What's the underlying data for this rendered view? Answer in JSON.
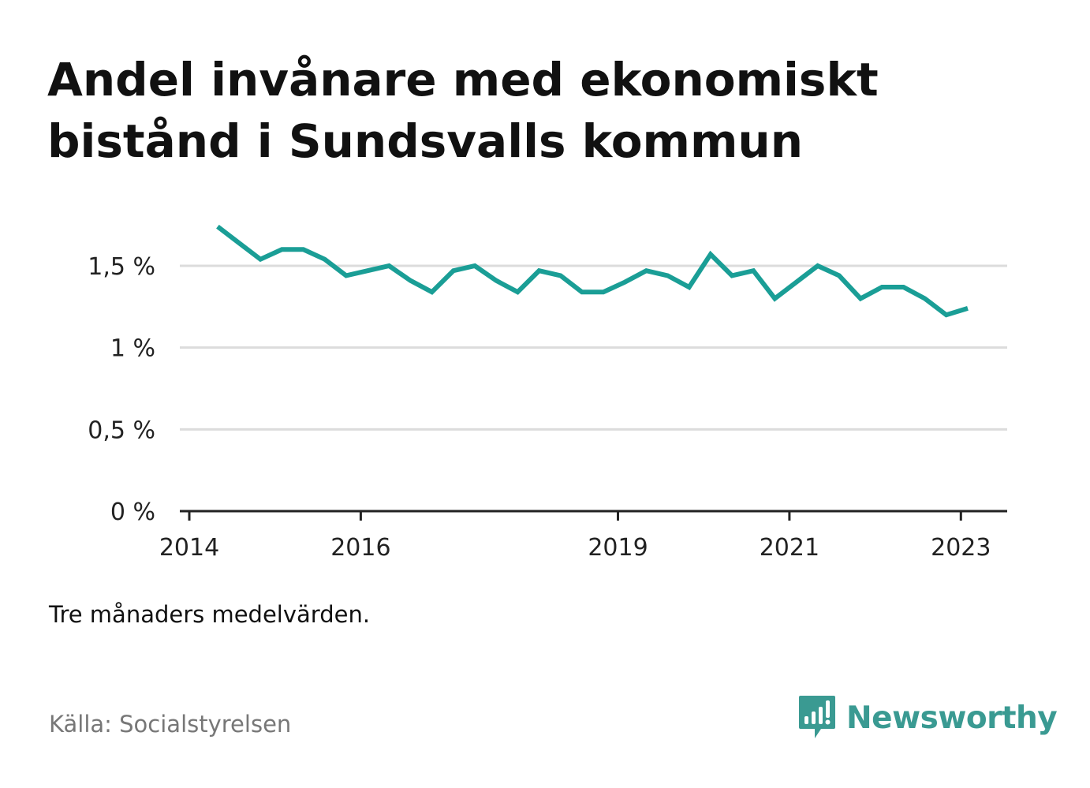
{
  "title": "Andel invånare med ekonomiskt bistånd i Sundsvalls kommun",
  "note": "Tre månaders medelvärden.",
  "source": "Källa: Socialstyrelsen",
  "brand": "Newsworthy",
  "colors": {
    "line": "#1a9e96",
    "brand": "#3a9a92",
    "grid": "#dcdcdc",
    "axis": "#222222"
  },
  "chart_data": {
    "type": "line",
    "title": "Andel invånare med ekonomiskt bistånd i Sundsvalls kommun",
    "xlabel": "",
    "ylabel": "",
    "x_ticks": [
      {
        "label": "2014",
        "year": 2014
      },
      {
        "label": "2016",
        "year": 2016
      },
      {
        "label": "2019",
        "year": 2019
      },
      {
        "label": "2021",
        "year": 2021
      },
      {
        "label": "2023",
        "year": 2023
      }
    ],
    "y_ticks": [
      {
        "label": "0 %",
        "value": 0
      },
      {
        "label": "0,5 %",
        "value": 0.5
      },
      {
        "label": "1 %",
        "value": 1
      },
      {
        "label": "1,5 %",
        "value": 1.5
      }
    ],
    "xlim": [
      2014,
      2023.5
    ],
    "ylim": [
      0,
      1.5
    ],
    "grid": true,
    "series": [
      {
        "values": [
          {
            "x": 2014.33,
            "y": 1.74
          },
          {
            "x": 2014.58,
            "y": 1.64
          },
          {
            "x": 2014.83,
            "y": 1.54
          },
          {
            "x": 2015.08,
            "y": 1.6
          },
          {
            "x": 2015.33,
            "y": 1.6
          },
          {
            "x": 2015.58,
            "y": 1.54
          },
          {
            "x": 2015.83,
            "y": 1.44
          },
          {
            "x": 2016.08,
            "y": 1.47
          },
          {
            "x": 2016.33,
            "y": 1.5
          },
          {
            "x": 2016.58,
            "y": 1.41
          },
          {
            "x": 2016.83,
            "y": 1.34
          },
          {
            "x": 2017.08,
            "y": 1.47
          },
          {
            "x": 2017.33,
            "y": 1.5
          },
          {
            "x": 2017.58,
            "y": 1.41
          },
          {
            "x": 2017.83,
            "y": 1.34
          },
          {
            "x": 2018.08,
            "y": 1.47
          },
          {
            "x": 2018.33,
            "y": 1.44
          },
          {
            "x": 2018.58,
            "y": 1.34
          },
          {
            "x": 2018.83,
            "y": 1.34
          },
          {
            "x": 2019.08,
            "y": 1.4
          },
          {
            "x": 2019.33,
            "y": 1.47
          },
          {
            "x": 2019.58,
            "y": 1.44
          },
          {
            "x": 2019.83,
            "y": 1.37
          },
          {
            "x": 2020.08,
            "y": 1.57
          },
          {
            "x": 2020.33,
            "y": 1.44
          },
          {
            "x": 2020.58,
            "y": 1.47
          },
          {
            "x": 2020.83,
            "y": 1.3
          },
          {
            "x": 2021.08,
            "y": 1.4
          },
          {
            "x": 2021.33,
            "y": 1.5
          },
          {
            "x": 2021.58,
            "y": 1.44
          },
          {
            "x": 2021.83,
            "y": 1.3
          },
          {
            "x": 2022.08,
            "y": 1.37
          },
          {
            "x": 2022.33,
            "y": 1.37
          },
          {
            "x": 2022.58,
            "y": 1.3
          },
          {
            "x": 2022.83,
            "y": 1.2
          },
          {
            "x": 2023.08,
            "y": 1.24
          }
        ]
      }
    ]
  }
}
